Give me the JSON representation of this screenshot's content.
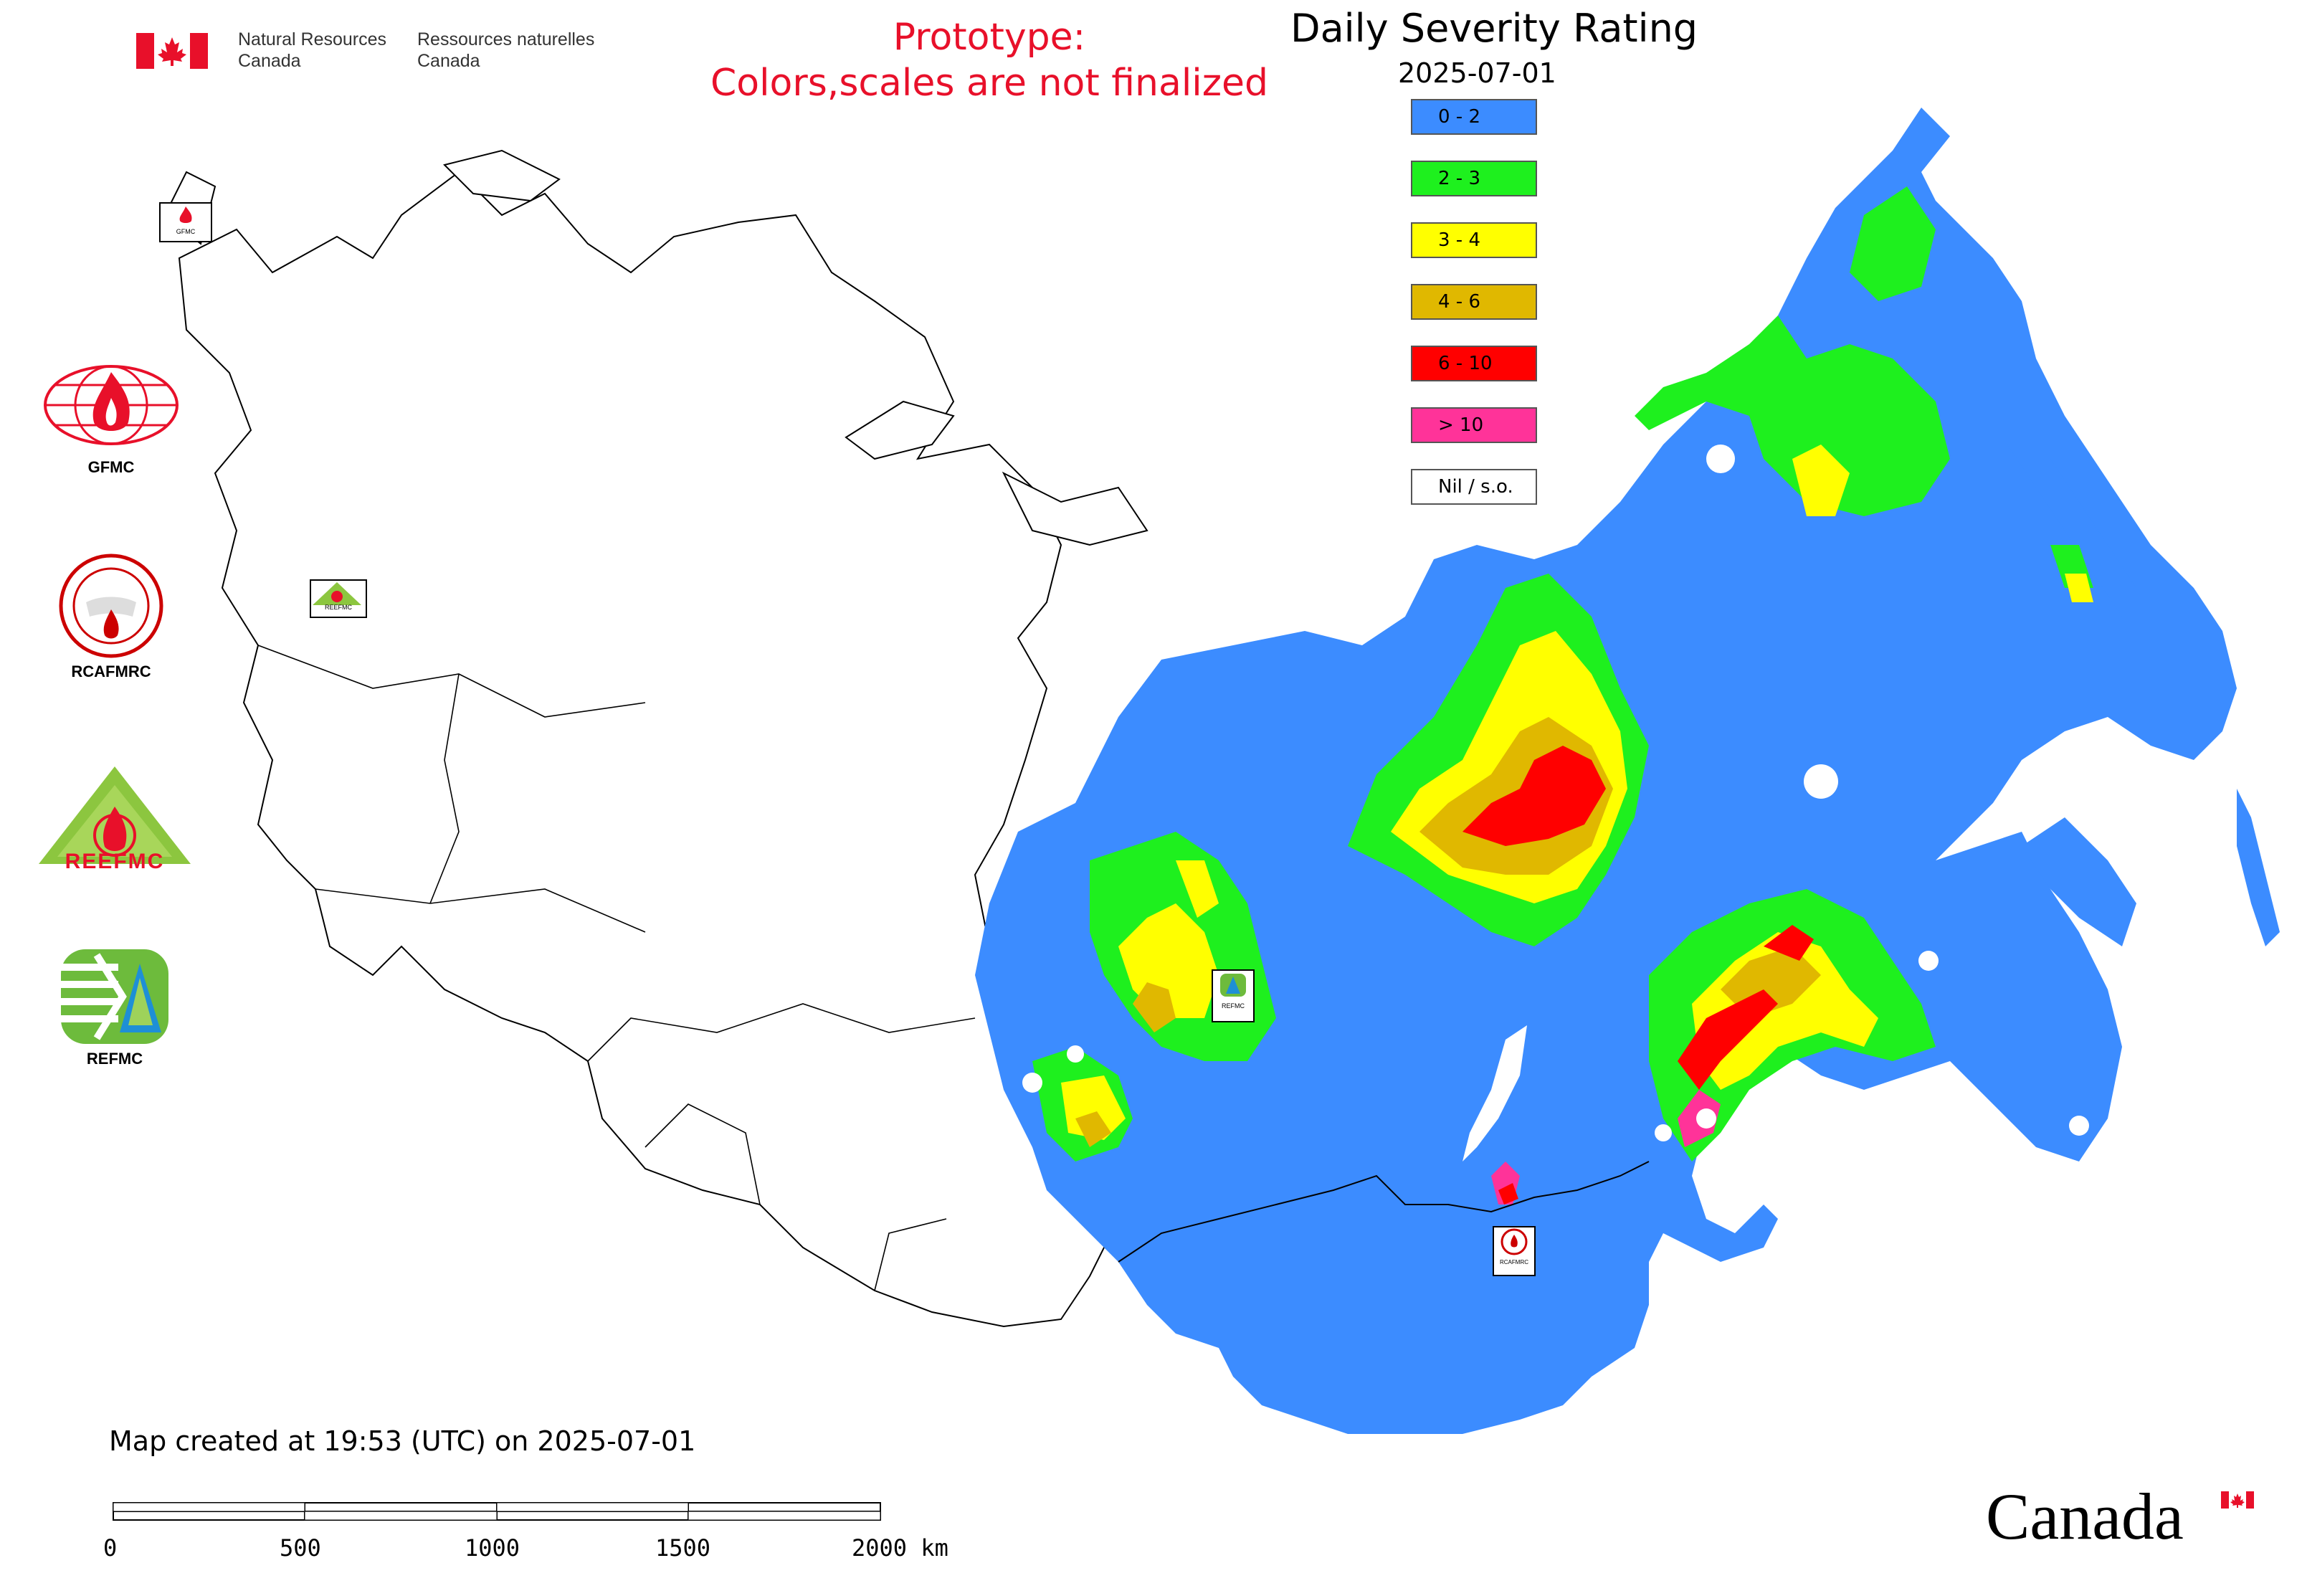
{
  "header": {
    "org_en_line1": "Natural Resources",
    "org_en_line2": "Canada",
    "org_fr_line1": "Ressources naturelles",
    "org_fr_line2": "Canada"
  },
  "notice": {
    "line1": "Prototype:",
    "line2": "Colors,scales are not finalized"
  },
  "map": {
    "title": "Daily Severity Rating",
    "date": "2025-07-01",
    "created_text": "Map created at 19:53 (UTC) on 2025-07-01"
  },
  "legend": [
    {
      "label": "0 - 2",
      "color": "#3c8cff"
    },
    {
      "label": "2 - 3",
      "color": "#1ef01e"
    },
    {
      "label": "3 - 4",
      "color": "#ffff00"
    },
    {
      "label": "4 - 6",
      "color": "#e0b800"
    },
    {
      "label": "6 - 10",
      "color": "#ff0000"
    },
    {
      "label": "> 10",
      "color": "#ff3399"
    },
    {
      "label": "Nil / s.o.",
      "color": "#ffffff"
    }
  ],
  "logos": {
    "gfmc": "GFMC",
    "rcafmrc": "RCAFMRC",
    "reefmc": "REEFMC",
    "refmc": "REFMC",
    "gfmc_small": "GFMC",
    "refmc_small": "REFMC",
    "rcafmrc_small": "RCAFMRC",
    "reefmc_small": "REEFMC"
  },
  "scale_bar": {
    "ticks": [
      "0",
      "500",
      "1000",
      "1500",
      "2000 km"
    ]
  },
  "wordmark": "Canada",
  "colors": {
    "notice_red": "#e8102a",
    "flag_red": "#e8102a"
  }
}
